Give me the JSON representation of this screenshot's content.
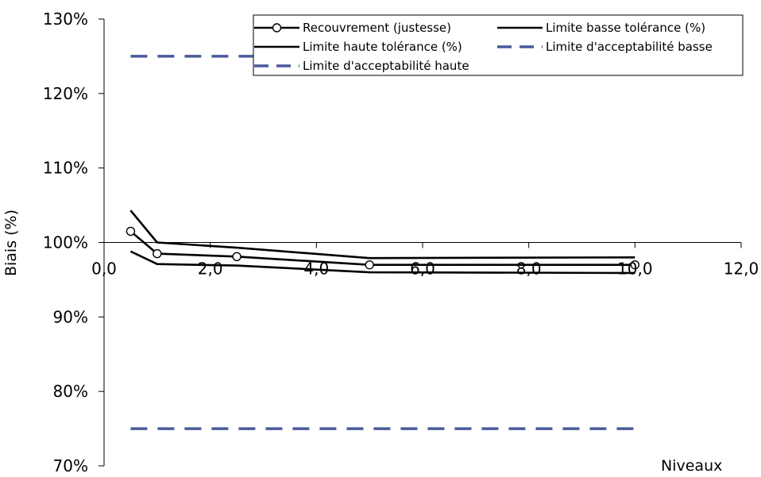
{
  "chart_data": {
    "type": "line",
    "title": "",
    "xlabel": "Niveaux",
    "ylabel": "Biais (%)",
    "xlim": [
      0,
      12
    ],
    "ylim": [
      70,
      130
    ],
    "x_ticks": [
      0,
      2,
      4,
      6,
      8,
      10,
      12
    ],
    "x_tick_labels": [
      "0,0",
      "2,0",
      "4,0",
      "6,0",
      "8,0",
      "10,0",
      "12,0"
    ],
    "y_ticks": [
      70,
      80,
      90,
      100,
      110,
      120,
      130
    ],
    "y_tick_labels": [
      "70%",
      "80%",
      "90%",
      "100%",
      "110%",
      "120%",
      "130%"
    ],
    "x_axis_crosses_y": 100,
    "grid": false,
    "legend_position": "top-right",
    "series": [
      {
        "name": "Recouvrement (justesse)",
        "style": "line-circle",
        "color": "#000000",
        "x": [
          0.5,
          1,
          2.5,
          5,
          10
        ],
        "y": [
          101.5,
          98.5,
          98.1,
          97.0,
          97.0
        ]
      },
      {
        "name": "Limite basse tolérance (%)",
        "style": "solid",
        "color": "#000000",
        "x": [
          0.5,
          1,
          2.5,
          5,
          10
        ],
        "y": [
          98.8,
          97.1,
          96.9,
          96.0,
          95.9
        ]
      },
      {
        "name": "Limite haute tolérance (%)",
        "style": "solid",
        "color": "#000000",
        "x": [
          0.5,
          1,
          2.5,
          5,
          10
        ],
        "y": [
          104.3,
          100.0,
          99.3,
          97.9,
          98.0
        ]
      },
      {
        "name": "Limite d'acceptabilité basse",
        "style": "dashed",
        "color": "#4a5a9a",
        "x": [
          0.5,
          10
        ],
        "y": [
          75,
          75
        ]
      },
      {
        "name": "Limite d'acceptabilité haute",
        "style": "dashed",
        "color": "#4a5a9a",
        "x": [
          0.5,
          10
        ],
        "y": [
          125,
          125
        ]
      }
    ]
  }
}
